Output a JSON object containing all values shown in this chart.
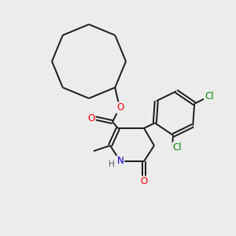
{
  "background_color": "#ececec",
  "bond_color": "#1a1a1a",
  "atom_colors": {
    "O": "#ff0000",
    "N": "#0000cc",
    "Cl": "#008800",
    "H": "#555555"
  },
  "figsize": [
    3.0,
    3.0
  ],
  "dpi": 100
}
